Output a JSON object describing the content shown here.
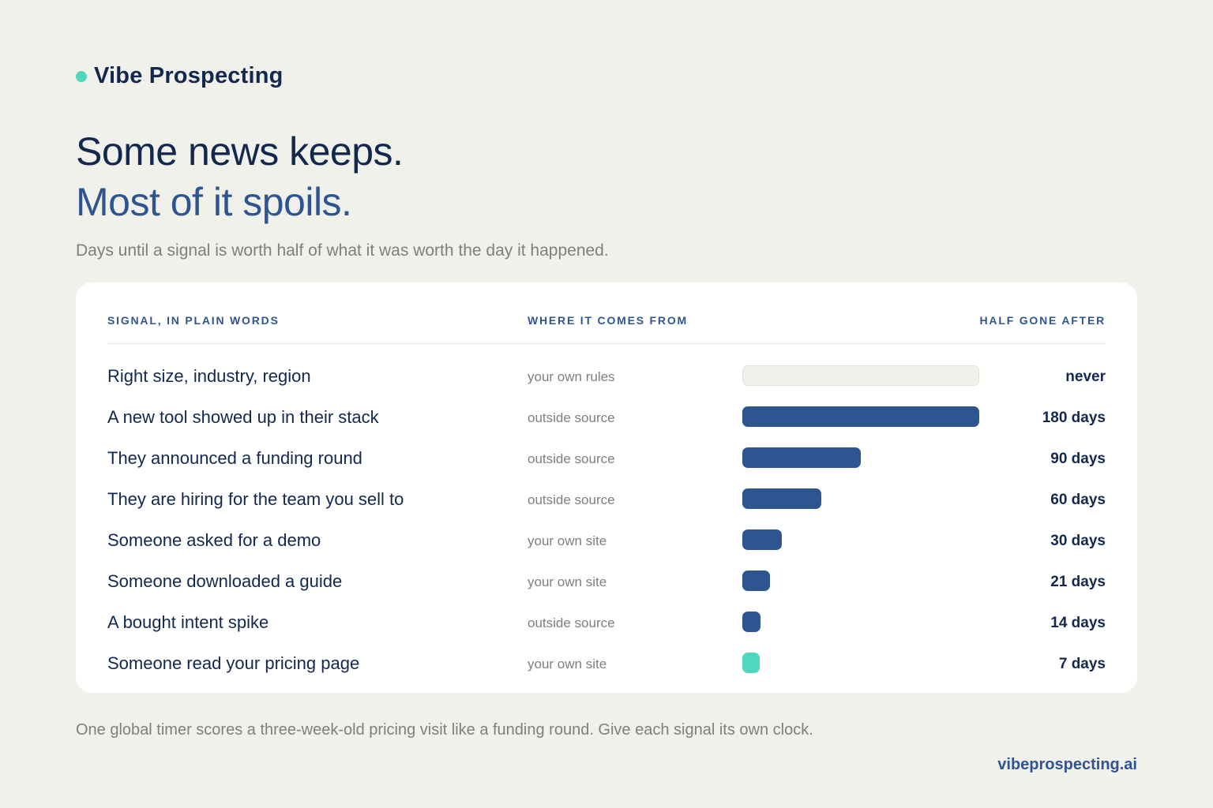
{
  "brand": {
    "name": "Vibe Prospecting",
    "dot_color": "#4fd8bd"
  },
  "headline": {
    "line1": "Some news keeps.",
    "line2": "Most of it spoils."
  },
  "subtitle": "Days until a signal is worth half of what it was worth the day it happened.",
  "chart_data": {
    "type": "table",
    "columns": [
      "SIGNAL, IN PLAIN WORDS",
      "WHERE IT COMES FROM",
      "HALF GONE AFTER"
    ],
    "bar_max_days": 180,
    "rows": [
      {
        "signal": "Right size, industry, region",
        "source": "your own rules",
        "days": null,
        "label": "never",
        "style": "empty"
      },
      {
        "signal": "A new tool showed up in their stack",
        "source": "outside source",
        "days": 180,
        "label": "180 days",
        "style": "primary"
      },
      {
        "signal": "They announced a funding round",
        "source": "outside source",
        "days": 90,
        "label": "90 days",
        "style": "primary"
      },
      {
        "signal": "They are hiring for the team you sell to",
        "source": "outside source",
        "days": 60,
        "label": "60 days",
        "style": "primary"
      },
      {
        "signal": "Someone asked for a demo",
        "source": "your own site",
        "days": 30,
        "label": "30 days",
        "style": "primary"
      },
      {
        "signal": "Someone downloaded a guide",
        "source": "your own site",
        "days": 21,
        "label": "21 days",
        "style": "primary"
      },
      {
        "signal": "A bought intent spike",
        "source": "outside source",
        "days": 14,
        "label": "14 days",
        "style": "primary"
      },
      {
        "signal": "Someone read your pricing page",
        "source": "your own site",
        "days": 7,
        "label": "7 days",
        "style": "accent"
      }
    ],
    "colors": {
      "primary": "#2f5591",
      "accent": "#4fd8bd",
      "empty": "#f1f1ec"
    }
  },
  "footnote": "One global timer scores a three-week-old pricing visit like a funding round. Give each signal its own clock.",
  "url": "vibeprospecting.ai"
}
